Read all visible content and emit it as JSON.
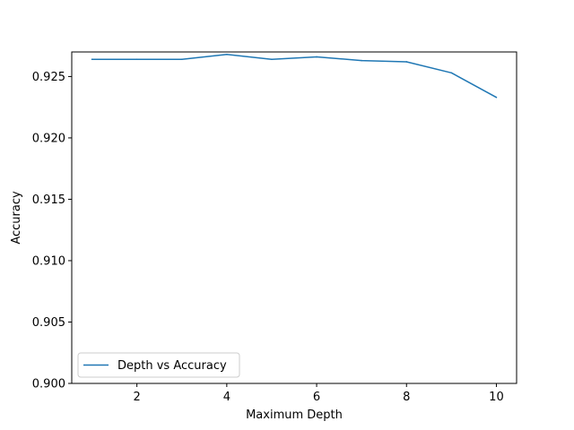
{
  "chart_data": {
    "type": "line",
    "title": "",
    "xlabel": "Maximum Depth",
    "ylabel": "Accuracy",
    "xlim": [
      0.55,
      10.45
    ],
    "ylim": [
      0.9,
      0.927
    ],
    "xticks": [
      2,
      4,
      6,
      8,
      10
    ],
    "yticks": [
      0.9,
      0.905,
      0.91,
      0.915,
      0.92,
      0.925
    ],
    "ytick_labels": [
      "0.900",
      "0.905",
      "0.910",
      "0.915",
      "0.920",
      "0.925"
    ],
    "grid": false,
    "legend": {
      "placement": "lower-left",
      "entries": [
        "Depth vs Accuracy"
      ]
    },
    "series": [
      {
        "name": "Depth vs Accuracy",
        "color": "#1f77b4",
        "x": [
          1,
          2,
          3,
          4,
          5,
          6,
          7,
          8,
          9,
          10
        ],
        "y": [
          0.9264,
          0.9264,
          0.9264,
          0.9268,
          0.9264,
          0.9266,
          0.9263,
          0.9262,
          0.9253,
          0.9233
        ]
      }
    ]
  }
}
